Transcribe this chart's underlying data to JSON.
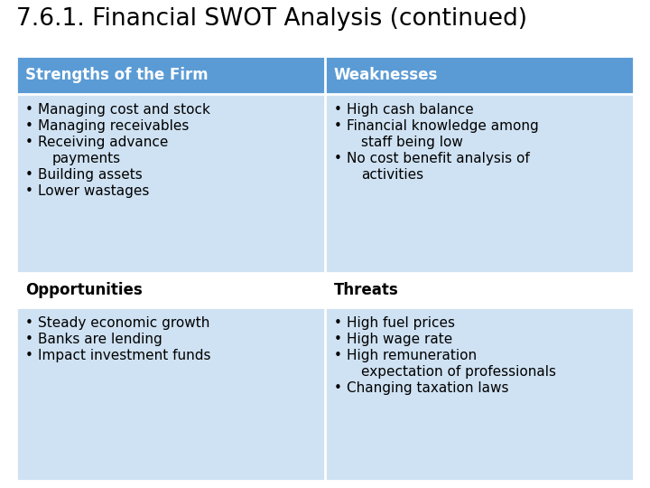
{
  "title": "7.6.1. Financial SWOT Analysis (continued)",
  "title_fontsize": 19,
  "title_color": "#000000",
  "background_color": "#ffffff",
  "header_bg_color": "#5b9bd5",
  "header_text_color": "#ffffff",
  "cell_bg_color": "#cfe2f3",
  "subheader_bg_color": "#ffffff",
  "subheader_text_color": "#000000",
  "headers": [
    "Strengths of the Firm",
    "Weaknesses"
  ],
  "subheaders": [
    "Opportunities",
    "Threats"
  ],
  "col1_items_top": [
    "Managing cost and stock",
    "Managing receivables",
    "Receiving advance\npayments",
    "Building assets",
    "Lower wastages"
  ],
  "col2_items_top": [
    "High cash balance",
    "Financial knowledge among\nstaff being low",
    "No cost benefit analysis of\nactivities"
  ],
  "col1_items_bottom": [
    "Steady economic growth",
    "Banks are lending",
    "Impact investment funds"
  ],
  "col2_items_bottom": [
    "High fuel prices",
    "High wage rate",
    "High remuneration\nexpectation of professionals",
    "Changing taxation laws"
  ],
  "cell_text_fontsize": 11,
  "header_fontsize": 12,
  "subheader_fontsize": 12
}
